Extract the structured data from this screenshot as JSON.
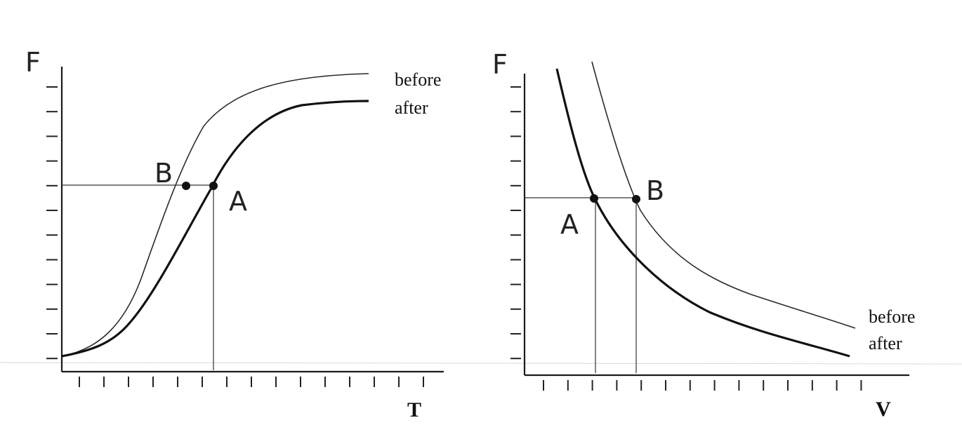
{
  "chart_data": [
    {
      "type": "line",
      "xlabel": "T",
      "ylabel": "F",
      "legend": [
        "before",
        "after"
      ],
      "legend_position": "top-right",
      "points": [
        {
          "label": "B",
          "series": "before"
        },
        {
          "label": "A",
          "series": "after"
        }
      ],
      "series": [
        {
          "name": "before",
          "shape": "sigmoid",
          "linewidth": "thin"
        },
        {
          "name": "after",
          "shape": "sigmoid",
          "linewidth": "thick"
        }
      ],
      "grid": false
    },
    {
      "type": "line",
      "xlabel": "V",
      "ylabel": "F",
      "legend": [
        "before",
        "after"
      ],
      "legend_position": "bottom-right",
      "points": [
        {
          "label": "A",
          "series": "after"
        },
        {
          "label": "B",
          "series": "before"
        }
      ],
      "series": [
        {
          "name": "before",
          "shape": "hyperbolic-decay",
          "linewidth": "thin"
        },
        {
          "name": "after",
          "shape": "hyperbolic-decay",
          "linewidth": "thick"
        }
      ],
      "grid": false
    }
  ]
}
